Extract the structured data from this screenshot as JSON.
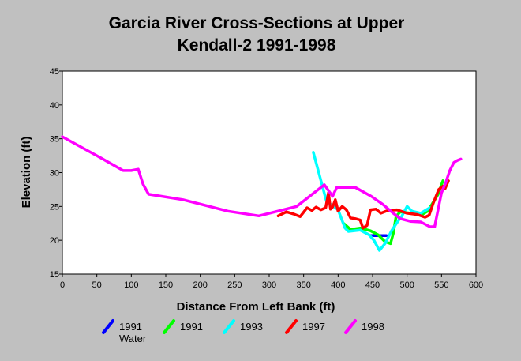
{
  "chart_data": {
    "type": "line",
    "title_lines": [
      "Garcia River Cross-Sections at Upper",
      "Kendall-2 1991-1998"
    ],
    "xlabel": "Distance From Left Bank (ft)",
    "ylabel": "Elevation (ft)",
    "xlim": [
      0,
      600
    ],
    "ylim": [
      15,
      45
    ],
    "x_ticks": [
      0,
      50,
      100,
      150,
      200,
      250,
      300,
      350,
      400,
      450,
      500,
      550,
      600
    ],
    "y_ticks": [
      15,
      20,
      25,
      30,
      35,
      40,
      45
    ],
    "grid": false,
    "legend_position": "bottom",
    "series": [
      {
        "name": "1991 Water",
        "legend_lines": [
          "1991",
          "Water"
        ],
        "color": "#0000ff",
        "points": [
          [
            447,
            20.7
          ],
          [
            470,
            20.7
          ]
        ]
      },
      {
        "name": "1991",
        "legend_lines": [
          "1991"
        ],
        "color": "#00ff00",
        "points": [
          [
            408,
            22.5
          ],
          [
            418,
            21.6
          ],
          [
            432,
            21.8
          ],
          [
            447,
            21.4
          ],
          [
            458,
            20.8
          ],
          [
            468,
            19.8
          ],
          [
            476,
            19.5
          ],
          [
            480,
            21
          ],
          [
            484,
            23.5
          ],
          [
            490,
            24.2
          ],
          [
            505,
            24
          ],
          [
            520,
            23.7
          ],
          [
            530,
            24.3
          ],
          [
            545,
            26.8
          ],
          [
            552,
            28.8
          ]
        ]
      },
      {
        "name": "1993",
        "legend_lines": [
          "1993"
        ],
        "color": "#00ffff",
        "points": [
          [
            364,
            33
          ],
          [
            383,
            25.8
          ],
          [
            400,
            24.5
          ],
          [
            410,
            21.8
          ],
          [
            415,
            21.3
          ],
          [
            432,
            21.5
          ],
          [
            445,
            20.8
          ],
          [
            452,
            20
          ],
          [
            460,
            18.5
          ],
          [
            468,
            19.5
          ],
          [
            478,
            21.5
          ],
          [
            488,
            23
          ],
          [
            492,
            23.5
          ],
          [
            500,
            25
          ],
          [
            507,
            24.3
          ],
          [
            520,
            24
          ],
          [
            533,
            24.8
          ]
        ]
      },
      {
        "name": "1997",
        "legend_lines": [
          "1997"
        ],
        "color": "#ff0000",
        "points": [
          [
            313,
            23.6
          ],
          [
            325,
            24.2
          ],
          [
            335,
            23.9
          ],
          [
            345,
            23.5
          ],
          [
            355,
            24.8
          ],
          [
            362,
            24.4
          ],
          [
            368,
            24.9
          ],
          [
            375,
            24.5
          ],
          [
            382,
            24.8
          ],
          [
            386,
            27
          ],
          [
            389,
            24.6
          ],
          [
            392,
            24.9
          ],
          [
            396,
            26
          ],
          [
            400,
            24.3
          ],
          [
            406,
            25
          ],
          [
            412,
            24.5
          ],
          [
            418,
            23.3
          ],
          [
            425,
            23.2
          ],
          [
            432,
            23
          ],
          [
            436,
            21.8
          ],
          [
            442,
            22.2
          ],
          [
            447,
            24.5
          ],
          [
            455,
            24.6
          ],
          [
            462,
            24
          ],
          [
            472,
            24.4
          ],
          [
            485,
            24.5
          ],
          [
            500,
            24
          ],
          [
            515,
            23.8
          ],
          [
            526,
            23.4
          ],
          [
            532,
            23.7
          ],
          [
            538,
            25.5
          ],
          [
            546,
            27.5
          ],
          [
            552,
            28
          ],
          [
            555,
            27.6
          ],
          [
            560,
            28.8
          ]
        ]
      },
      {
        "name": "1998",
        "legend_lines": [
          "1998"
        ],
        "color": "#ff00ff",
        "points": [
          [
            0,
            35.3
          ],
          [
            50,
            32.5
          ],
          [
            88,
            30.3
          ],
          [
            100,
            30.3
          ],
          [
            110,
            30.5
          ],
          [
            117,
            28.3
          ],
          [
            125,
            26.8
          ],
          [
            175,
            26
          ],
          [
            240,
            24.3
          ],
          [
            285,
            23.6
          ],
          [
            340,
            25
          ],
          [
            380,
            28.2
          ],
          [
            392,
            26.5
          ],
          [
            398,
            27.8
          ],
          [
            425,
            27.8
          ],
          [
            448,
            26.5
          ],
          [
            465,
            25.3
          ],
          [
            480,
            24
          ],
          [
            490,
            23.2
          ],
          [
            505,
            22.8
          ],
          [
            520,
            22.7
          ],
          [
            533,
            22
          ],
          [
            540,
            22
          ],
          [
            546,
            25
          ],
          [
            550,
            27
          ],
          [
            556,
            28.5
          ],
          [
            562,
            30.3
          ],
          [
            568,
            31.5
          ],
          [
            573,
            31.8
          ],
          [
            578,
            32
          ]
        ]
      }
    ]
  }
}
